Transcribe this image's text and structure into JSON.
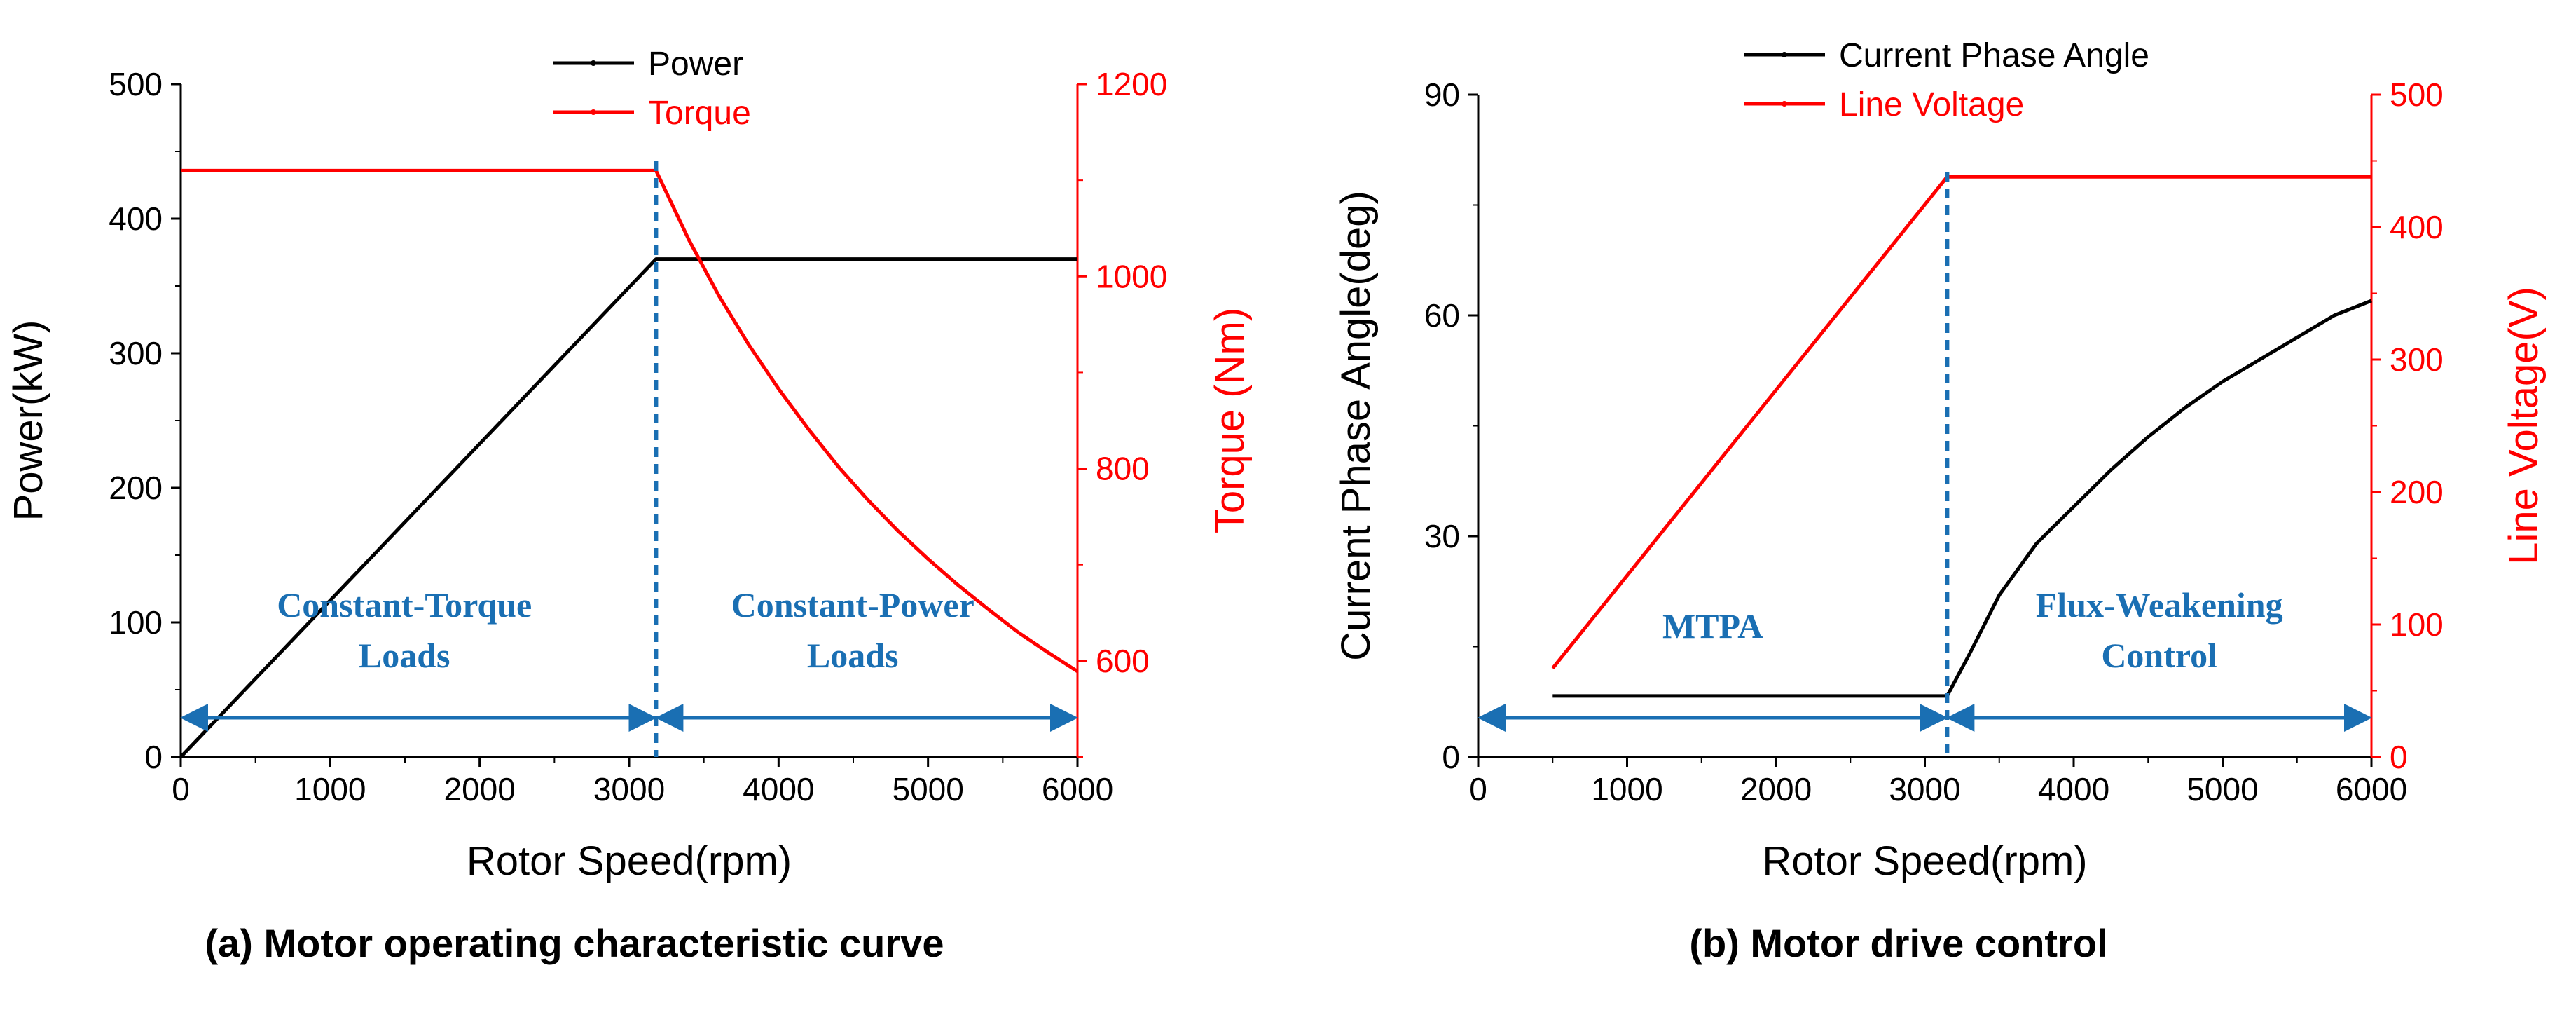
{
  "colors": {
    "black": "#000000",
    "red": "#ff0000",
    "blue": "#1a6fb3"
  },
  "chart_data": [
    {
      "type": "line",
      "caption": "(a) Motor operating characteristic curve",
      "xlabel": "Rotor Speed(rpm)",
      "ylabel": "Power(kW)",
      "y2label": "Torque (Nm)",
      "xlim": [
        0,
        6000
      ],
      "ylim": [
        0,
        500
      ],
      "y2lim": [
        500,
        1200
      ],
      "xticks": [
        "0",
        "1000",
        "2000",
        "3000",
        "4000",
        "5000",
        "6000"
      ],
      "yticks": [
        "0",
        "100",
        "200",
        "300",
        "400",
        "500"
      ],
      "y2ticks": [
        "600",
        "800",
        "1000",
        "1200"
      ],
      "legend": [
        "Power",
        "Torque"
      ],
      "series": [
        {
          "name": "Power",
          "axis": "left",
          "color": "#000000",
          "x": [
            0,
            3180,
            6000
          ],
          "y": [
            0,
            370,
            370
          ]
        },
        {
          "name": "Torque",
          "axis": "right",
          "color": "#ff0000",
          "x": [
            0,
            3180,
            3400,
            3600,
            3800,
            4000,
            4200,
            4400,
            4600,
            4800,
            5000,
            5200,
            5400,
            5600,
            5800,
            6000
          ],
          "y": [
            1110,
            1110,
            1038,
            980,
            929,
            883,
            841,
            802,
            767,
            735,
            706,
            679,
            654,
            630,
            609,
            589
          ]
        }
      ],
      "divider_x": 3180,
      "regions": [
        {
          "line1": "Constant-Torque",
          "line2": "Loads",
          "x_from": 0,
          "x_to": 3180
        },
        {
          "line1": "Constant-Power",
          "line2": "Loads",
          "x_from": 3180,
          "x_to": 6000
        }
      ]
    },
    {
      "type": "line",
      "caption": "(b) Motor drive control",
      "xlabel": "Rotor Speed(rpm)",
      "ylabel": "Current Phase Angle(deg)",
      "y2label": "Line Voltage(V)",
      "xlim": [
        0,
        6000
      ],
      "ylim": [
        0,
        90
      ],
      "y2lim": [
        0,
        500
      ],
      "xticks": [
        "0",
        "1000",
        "2000",
        "3000",
        "4000",
        "5000",
        "6000"
      ],
      "yticks": [
        "0",
        "30",
        "60",
        "90"
      ],
      "y2ticks": [
        "0",
        "100",
        "200",
        "300",
        "400",
        "500"
      ],
      "legend": [
        "Current Phase Angle",
        "Line Voltage"
      ],
      "series": [
        {
          "name": "Current Phase Angle",
          "axis": "left",
          "color": "#000000",
          "x": [
            500,
            3150,
            3300,
            3500,
            3750,
            4000,
            4250,
            4500,
            4750,
            5000,
            5250,
            5500,
            5750,
            6000
          ],
          "y": [
            8.3,
            8.3,
            14,
            22,
            29,
            34,
            39,
            43.5,
            47.5,
            51,
            54,
            57,
            60,
            62
          ]
        },
        {
          "name": "Line Voltage",
          "axis": "right",
          "color": "#ff0000",
          "x": [
            500,
            3150,
            6000
          ],
          "y": [
            67,
            438,
            438
          ]
        }
      ],
      "divider_x": 3150,
      "regions": [
        {
          "line1": "MTPA",
          "line2": "",
          "x_from": 0,
          "x_to": 3150
        },
        {
          "line1": "Flux-Weakening",
          "line2": "Control",
          "x_from": 3150,
          "x_to": 6000
        }
      ]
    }
  ]
}
